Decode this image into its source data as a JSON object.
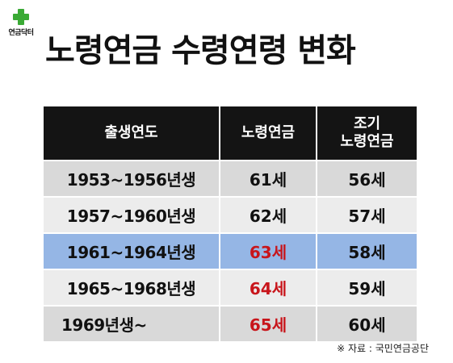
{
  "logo": {
    "text": "연금닥터",
    "icon": "green-cross-icon",
    "color": "#3aaa35"
  },
  "title": "노령연금 수령연령 변화",
  "table": {
    "headers": [
      "출생연도",
      "노령연금",
      "조기\n노령연금"
    ],
    "rows": [
      {
        "birth": "1953~1956년생",
        "pension": "61세",
        "early": "56세",
        "highlight": false,
        "pension_red": false
      },
      {
        "birth": "1957~1960년생",
        "pension": "62세",
        "early": "57세",
        "highlight": false,
        "pension_red": false
      },
      {
        "birth": "1961~1964년생",
        "pension": "63세",
        "early": "58세",
        "highlight": true,
        "pension_red": true
      },
      {
        "birth": "1965~1968년생",
        "pension": "64세",
        "early": "59세",
        "highlight": false,
        "pension_red": true
      },
      {
        "birth": "1969년생~",
        "pension": "65세",
        "early": "60세",
        "highlight": false,
        "pension_red": true
      }
    ]
  },
  "colors": {
    "header_bg": "#141414",
    "row_gray": "#d9d9d9",
    "row_light": "#ececec",
    "row_highlight": "#95b6e5",
    "accent_red": "#c8151b"
  },
  "source": "※ 자료 : 국민연금공단"
}
